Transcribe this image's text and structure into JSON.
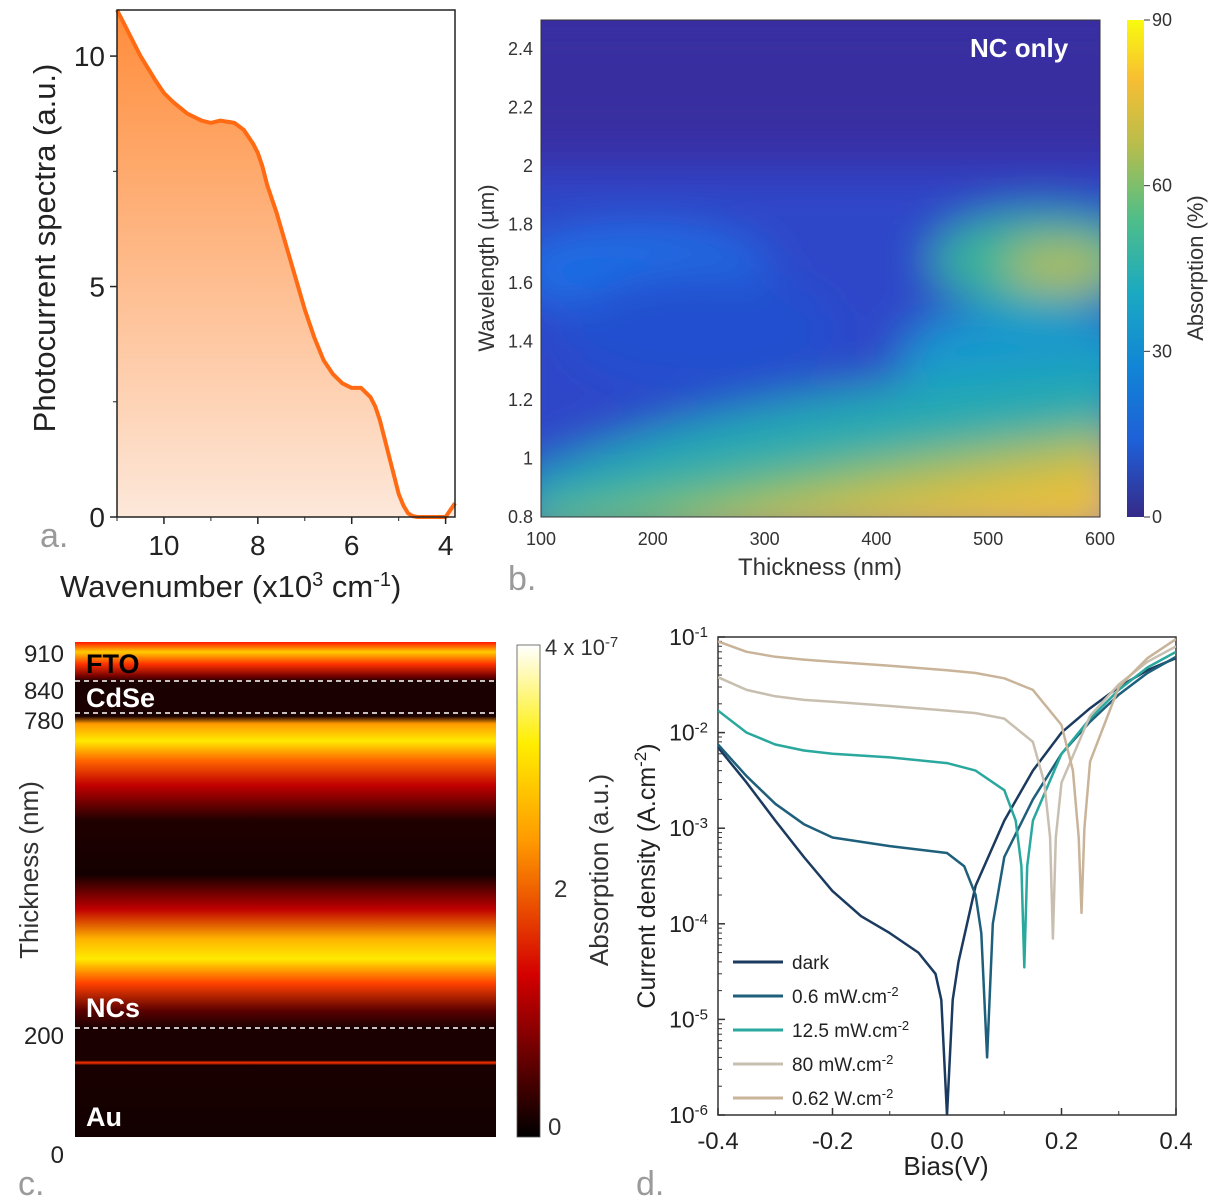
{
  "chart_data": [
    {
      "panel": "a.",
      "type": "area",
      "xlabel": "Wavenumber (x10^3 cm^-1)",
      "ylabel": "Photocurrent spectra (a.u.)",
      "xlim": [
        11,
        3.8
      ],
      "ylim": [
        0,
        11
      ],
      "xticks": [
        10,
        8,
        6,
        4
      ],
      "yticks": [
        0,
        5,
        10
      ],
      "x": [
        11.0,
        10.8,
        10.5,
        10.2,
        10.0,
        9.8,
        9.5,
        9.2,
        9.0,
        8.8,
        8.5,
        8.3,
        8.1,
        8.0,
        7.9,
        7.8,
        7.6,
        7.4,
        7.2,
        7.0,
        6.8,
        6.6,
        6.4,
        6.2,
        6.0,
        5.8,
        5.6,
        5.5,
        5.4,
        5.3,
        5.2,
        5.1,
        5.0,
        4.9,
        4.8,
        4.7,
        4.6,
        4.4,
        4.2,
        4.0,
        3.8
      ],
      "y": [
        11.0,
        10.6,
        10.0,
        9.5,
        9.2,
        9.0,
        8.75,
        8.6,
        8.55,
        8.6,
        8.55,
        8.4,
        8.1,
        7.9,
        7.6,
        7.2,
        6.6,
        5.9,
        5.2,
        4.5,
        3.9,
        3.4,
        3.1,
        2.9,
        2.8,
        2.8,
        2.6,
        2.4,
        2.1,
        1.7,
        1.3,
        0.9,
        0.5,
        0.25,
        0.08,
        0.02,
        0.0,
        0.0,
        0.0,
        0.0,
        0.3
      ],
      "line_color": "#ff6a13",
      "fill_color_top": "#ff8c3a",
      "fill_color_bottom": "#fde8da"
    },
    {
      "panel": "b.",
      "type": "heatmap",
      "annotation": "NC only",
      "xlabel": "Thickness (nm)",
      "ylabel": "Wavelength (µm)",
      "colorbar_label": "Absorption (%)",
      "xlim": [
        100,
        600
      ],
      "ylim": [
        0.8,
        2.5
      ],
      "xticks": [
        100,
        200,
        300,
        400,
        500,
        600
      ],
      "yticks": [
        0.8,
        1,
        1.2,
        1.4,
        1.6,
        1.8,
        2,
        2.2,
        2.4
      ],
      "ytick_labels": [
        "0.8",
        "1",
        "1.2",
        "1.4",
        "1.6",
        "1.8",
        "2",
        "2.2",
        "2.4"
      ],
      "colorbar_ticks": [
        0,
        30,
        60,
        90
      ],
      "colorbar_range": [
        0,
        90
      ],
      "colormap": "parula",
      "approx_features": [
        {
          "thickness": 180,
          "wavelength": 1.65,
          "absorption": 25
        },
        {
          "thickness": 560,
          "wavelength": 1.65,
          "absorption": 70
        },
        {
          "thickness": 450,
          "wavelength": 0.9,
          "absorption": 78
        },
        {
          "thickness": 300,
          "wavelength": 2.3,
          "absorption": 2
        }
      ]
    },
    {
      "panel": "c.",
      "type": "heatmap",
      "ylabel": "Thickness (nm)",
      "colorbar_label": "Absorption (a.u.)",
      "colorbar_ticks": [
        "0",
        "2",
        "4 x 10^-7"
      ],
      "ytick_labels": [
        "910",
        "840",
        "780",
        "200",
        "0"
      ],
      "yticks": [
        910,
        840,
        780,
        200,
        0
      ],
      "ylim": [
        0,
        910
      ],
      "layers": [
        "FTO",
        "CdSe",
        "NCs",
        "Au"
      ],
      "interfaces": [
        840,
        780,
        200
      ],
      "colormap": "hot",
      "bright_bands_nm": [
        {
          "center": 740,
          "width": 40
        },
        {
          "center": 405,
          "width": 35
        }
      ]
    },
    {
      "panel": "d.",
      "type": "line",
      "xlabel": "Bias(V)",
      "ylabel": "Current density (A.cm^-2)",
      "yscale": "log",
      "xlim": [
        -0.4,
        0.4
      ],
      "ylim": [
        1e-06,
        0.1
      ],
      "xticks": [
        -0.4,
        -0.2,
        0.0,
        0.2,
        0.4
      ],
      "xtick_labels": [
        "-0.4",
        "-0.2",
        "0.0",
        "0.2",
        "0.4"
      ],
      "yticks": [
        1e-06,
        1e-05,
        0.0001,
        0.001,
        0.01,
        0.1
      ],
      "ytick_exponents": [
        "-6",
        "-5",
        "-4",
        "-3",
        "-2",
        "-1"
      ],
      "series": [
        {
          "name": "dark",
          "sup": "",
          "color": "#1b3a5f",
          "x": [
            -0.4,
            -0.35,
            -0.3,
            -0.25,
            -0.2,
            -0.15,
            -0.1,
            -0.05,
            -0.02,
            -0.01,
            0.0,
            0.01,
            0.02,
            0.05,
            0.1,
            0.15,
            0.2,
            0.25,
            0.3,
            0.35,
            0.4
          ],
          "y": [
            0.007,
            0.003,
            0.0012,
            0.0005,
            0.00022,
            0.00012,
            8e-05,
            5e-05,
            3e-05,
            1.6e-05,
            1e-06,
            1.6e-05,
            4e-05,
            0.00025,
            0.0012,
            0.004,
            0.01,
            0.018,
            0.03,
            0.045,
            0.06
          ]
        },
        {
          "name": "0.6 mW.cm",
          "sup": "-2",
          "color": "#1e5f7c",
          "x": [
            -0.4,
            -0.35,
            -0.3,
            -0.25,
            -0.2,
            -0.1,
            0.0,
            0.03,
            0.05,
            0.06,
            0.07,
            0.08,
            0.1,
            0.15,
            0.2,
            0.25,
            0.3,
            0.35,
            0.4
          ],
          "y": [
            0.0075,
            0.0035,
            0.0018,
            0.0011,
            0.0008,
            0.00065,
            0.00055,
            0.0004,
            0.0002,
            8e-05,
            4e-06,
            0.0001,
            0.0005,
            0.002,
            0.006,
            0.013,
            0.025,
            0.042,
            0.062
          ]
        },
        {
          "name": "12.5 mW.cm",
          "sup": "-2",
          "color": "#2aa89e",
          "x": [
            -0.4,
            -0.35,
            -0.3,
            -0.25,
            -0.2,
            -0.1,
            0.0,
            0.05,
            0.1,
            0.12,
            0.13,
            0.135,
            0.14,
            0.15,
            0.2,
            0.25,
            0.3,
            0.35,
            0.4
          ],
          "y": [
            0.017,
            0.01,
            0.0075,
            0.0065,
            0.006,
            0.0055,
            0.0048,
            0.004,
            0.0025,
            0.0012,
            0.0004,
            3.5e-05,
            0.0004,
            0.0012,
            0.006,
            0.014,
            0.028,
            0.048,
            0.07
          ]
        },
        {
          "name": "80 mW.cm",
          "sup": "-2",
          "color": "#c8bfb0",
          "x": [
            -0.4,
            -0.35,
            -0.3,
            -0.25,
            -0.2,
            -0.1,
            0.0,
            0.05,
            0.1,
            0.15,
            0.17,
            0.18,
            0.185,
            0.19,
            0.2,
            0.25,
            0.3,
            0.35,
            0.4
          ],
          "y": [
            0.038,
            0.028,
            0.024,
            0.022,
            0.021,
            0.019,
            0.017,
            0.016,
            0.014,
            0.008,
            0.003,
            0.0008,
            7e-05,
            0.0008,
            0.003,
            0.015,
            0.032,
            0.055,
            0.08
          ]
        },
        {
          "name": "0.62 W.cm",
          "sup": "-2",
          "color": "#c9b49a",
          "x": [
            -0.4,
            -0.35,
            -0.3,
            -0.25,
            -0.2,
            -0.1,
            0.0,
            0.05,
            0.1,
            0.15,
            0.2,
            0.22,
            0.23,
            0.235,
            0.24,
            0.25,
            0.3,
            0.35,
            0.4
          ],
          "y": [
            0.09,
            0.07,
            0.062,
            0.058,
            0.055,
            0.05,
            0.045,
            0.042,
            0.037,
            0.028,
            0.012,
            0.004,
            0.0008,
            0.00013,
            0.001,
            0.005,
            0.03,
            0.06,
            0.095
          ]
        }
      ]
    }
  ]
}
